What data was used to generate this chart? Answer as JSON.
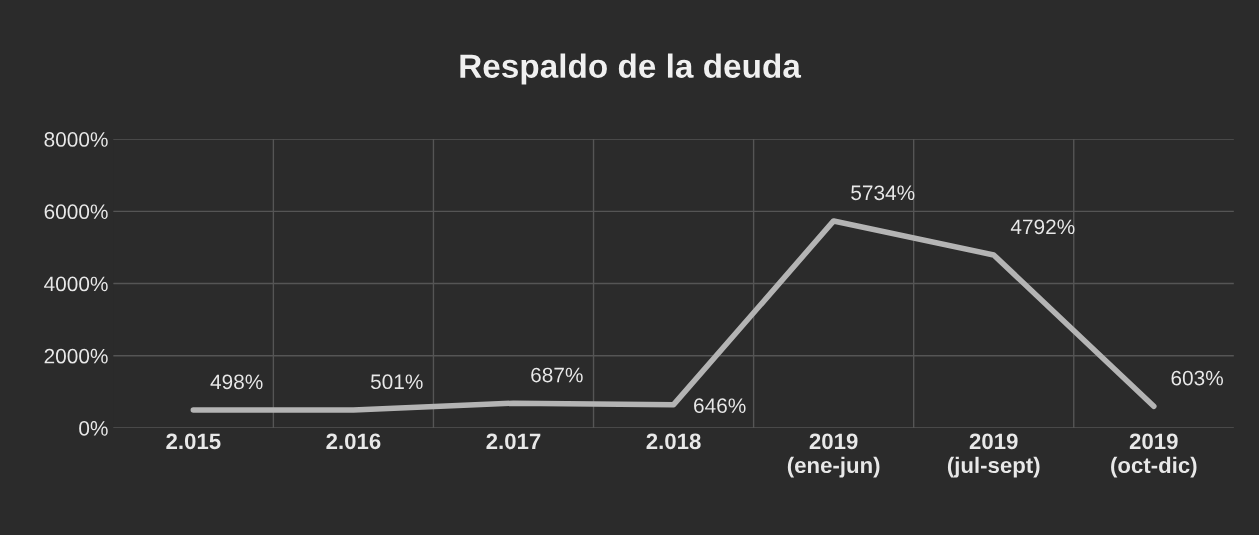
{
  "chart_data": {
    "type": "line",
    "title": "Respaldo de la deuda",
    "categories": [
      "2.015",
      "2.016",
      "2.017",
      "2.018",
      "2019\n(ene-jun)",
      "2019\n(jul-sept)",
      "2019\n(oct-dic)"
    ],
    "series": [
      {
        "color": "#b4b4b4",
        "values": [
          498,
          501,
          687,
          646,
          5734,
          4792,
          603
        ],
        "value_labels": [
          "498%",
          "501%",
          "687%",
          "646%",
          "5734%",
          "4792%",
          "603%"
        ]
      }
    ],
    "ylim": [
      0,
      8000
    ],
    "yticks": [
      {
        "value": 0,
        "label": "0%"
      },
      {
        "value": 2000,
        "label": "2000%"
      },
      {
        "value": 4000,
        "label": "4000%"
      },
      {
        "value": 6000,
        "label": "6000%"
      },
      {
        "value": 8000,
        "label": "8000%"
      }
    ],
    "grid": true,
    "marker": "none",
    "line_style": "solid",
    "legend": false
  }
}
